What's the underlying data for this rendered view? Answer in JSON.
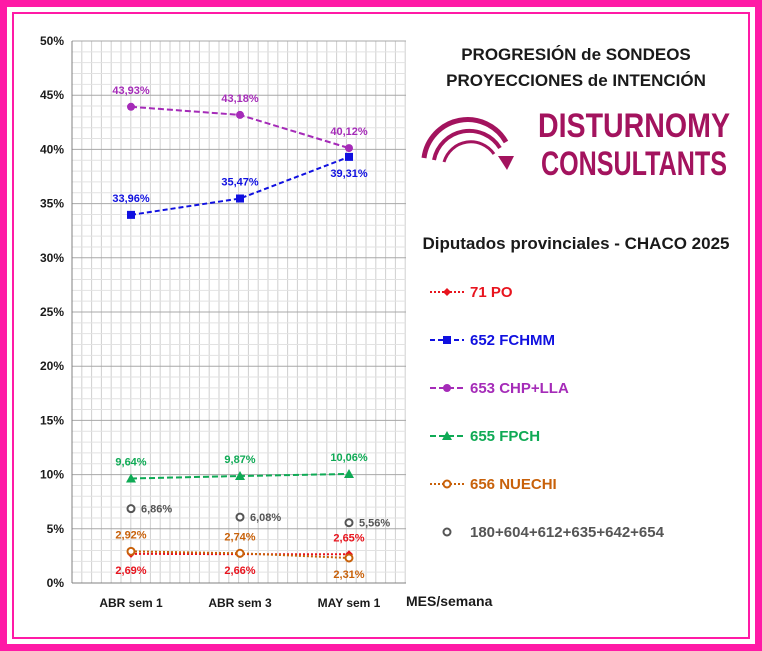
{
  "header": {
    "title_line1": "PROGRESIÓN de SONDEOS",
    "title_line2": "PROYECCIONES de INTENCIÓN",
    "brand_line1": "DISTURNOMY",
    "brand_line2": "CONSULTANTS",
    "subtitle": "Diputados provinciales - CHACO 2025"
  },
  "colors": {
    "frame": "#ff1aa6",
    "brand": "#a3135e"
  },
  "chart_data": {
    "type": "line",
    "categories": [
      "ABR sem 1",
      "ABR sem 3",
      "MAY sem 1"
    ],
    "xlabel": "MES/semana",
    "ylabel": "",
    "ylim": [
      0,
      50
    ],
    "yticks": [
      "0%",
      "5%",
      "10%",
      "15%",
      "20%",
      "25%",
      "30%",
      "35%",
      "40%",
      "45%",
      "50%"
    ],
    "grid": true,
    "legend_position": "right",
    "series": [
      {
        "name": "71 PO",
        "values": [
          2.69,
          2.66,
          2.65
        ],
        "labels": [
          "2,69%",
          "2,66%",
          "2,65%"
        ],
        "label_pos": [
          "below",
          "below",
          "above"
        ],
        "color": "#e8141e",
        "marker": "diamond",
        "dash": "2,2"
      },
      {
        "name": "652 FCHMM",
        "values": [
          33.96,
          35.47,
          39.31
        ],
        "labels": [
          "33,96%",
          "35,47%",
          "39,31%"
        ],
        "label_pos": [
          "above",
          "above",
          "below"
        ],
        "color": "#1010e0",
        "marker": "square",
        "dash": "5,3"
      },
      {
        "name": "653 CHP+LLA",
        "values": [
          43.93,
          43.18,
          40.12
        ],
        "labels": [
          "43,93%",
          "43,18%",
          "40,12%"
        ],
        "label_pos": [
          "above",
          "above",
          "above"
        ],
        "color": "#a52bb8",
        "marker": "circle",
        "dash": "6,3"
      },
      {
        "name": "655 FPCH",
        "values": [
          9.64,
          9.87,
          10.06
        ],
        "labels": [
          "9,64%",
          "9,87%",
          "10,06%"
        ],
        "label_pos": [
          "above",
          "above",
          "above"
        ],
        "color": "#0faa55",
        "marker": "triangle",
        "dash": "6,3"
      },
      {
        "name": "656 NUECHI",
        "values": [
          2.92,
          2.74,
          2.31
        ],
        "labels": [
          "2,92%",
          "2,74%",
          "2,31%"
        ],
        "label_pos": [
          "above",
          "above",
          "below"
        ],
        "color": "#c8610a",
        "marker": "hollow-circle",
        "dash": "2,2"
      },
      {
        "name": "180+604+612+635+642+654",
        "values": [
          6.86,
          6.08,
          5.56
        ],
        "labels": [
          "6,86%",
          "6,08%",
          "5,56%"
        ],
        "label_pos": [
          "right",
          "right",
          "right"
        ],
        "color": "#555555",
        "marker": "hollow-circle",
        "dash": "none"
      }
    ]
  }
}
